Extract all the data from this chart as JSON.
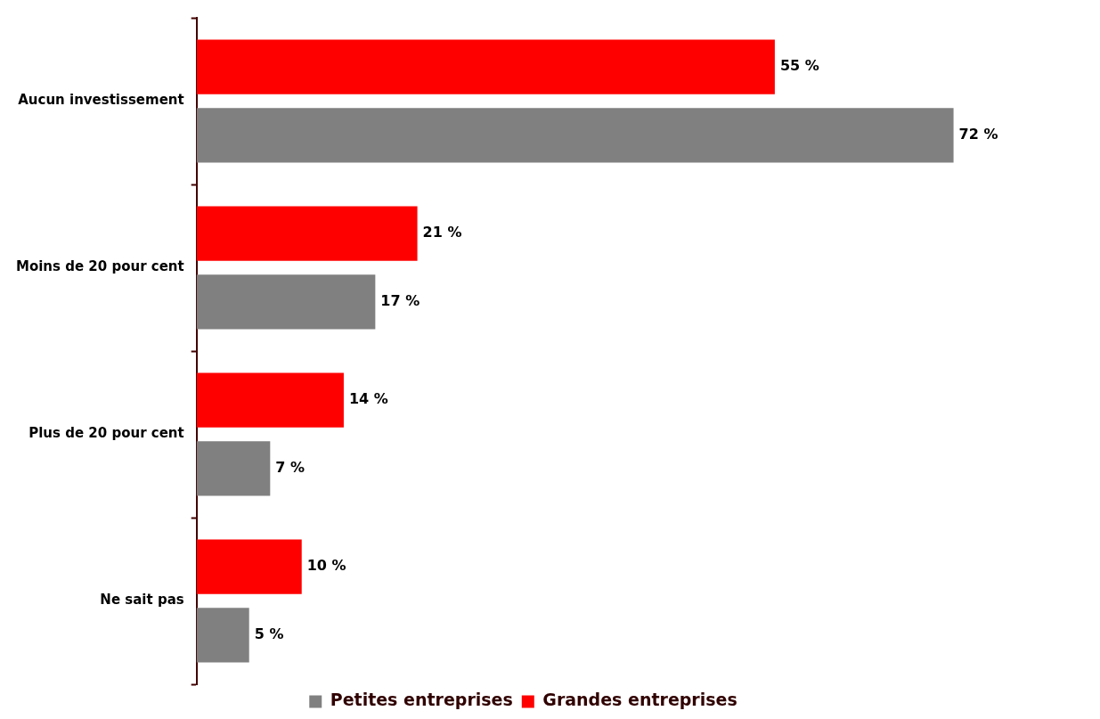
{
  "chart_data": {
    "type": "bar",
    "orientation": "horizontal",
    "categories": [
      "Aucun investissement",
      "Moins de 20 pour cent",
      "Plus de 20 pour cent",
      "Ne sait pas"
    ],
    "series": [
      {
        "name": "Petites entreprises",
        "color": "#808080",
        "values": [
          72,
          17,
          7,
          5
        ],
        "value_labels": [
          "72 %",
          "17 %",
          "7 %",
          "5 %"
        ]
      },
      {
        "name": "Grandes entreprises",
        "color": "#ff0000",
        "values": [
          55,
          21,
          14,
          10
        ],
        "value_labels": [
          "55 %",
          "21 %",
          "14 %",
          "10 %"
        ]
      }
    ],
    "legend": "bottom",
    "tick_labels": "y"
  }
}
